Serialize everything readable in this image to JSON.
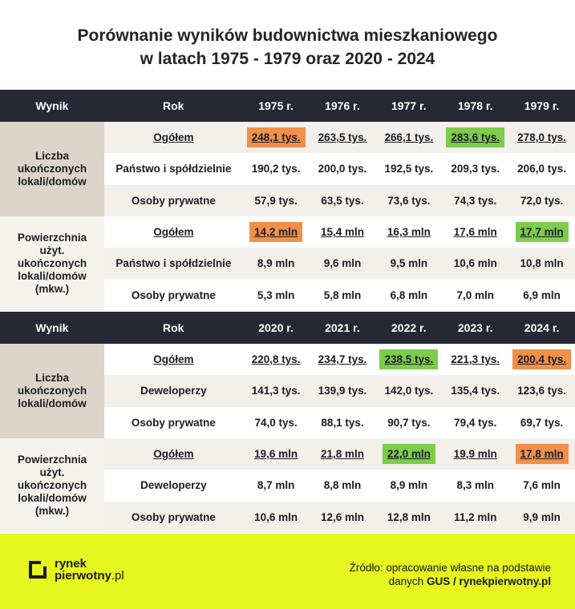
{
  "title": {
    "line1": "Porównanie wyników budownictwa mieszkaniowego",
    "line2": "w latach 1975 - 1979 oraz 2020 - 2024"
  },
  "table1": {
    "header": {
      "label": "Wynik",
      "category": "Rok",
      "years": [
        "1975 r.",
        "1976 r.",
        "1977 r.",
        "1978 r.",
        "1979 r."
      ]
    },
    "groups": [
      {
        "label": "Liczba ukończonych lokali/domów",
        "rows": [
          {
            "category": "Ogółem",
            "values": [
              "248,1 tys.",
              "263,5 tys.",
              "266,1 tys.",
              "283,6 tys.",
              "278,0 tys."
            ]
          },
          {
            "category": "Państwo i spółdzielnie",
            "values": [
              "190,2 tys.",
              "200,0 tys.",
              "192,5 tys.",
              "209,3 tys.",
              "206,0 tys."
            ]
          },
          {
            "category": "Osoby prywatne",
            "values": [
              "57,9 tys.",
              "63,5 tys.",
              "73,6 tys.",
              "74,3 tys.",
              "72,0 tys."
            ]
          }
        ]
      },
      {
        "label": "Powierzchnia użyt. ukończonych lokali/domów (mkw.)",
        "rows": [
          {
            "category": "Ogółem",
            "values": [
              "14,2 mln",
              "15,4 mln",
              "16,3 mln",
              "17,6 mln",
              "17,7 mln"
            ]
          },
          {
            "category": "Państwo i spółdzielnie",
            "values": [
              "8,9 mln",
              "9,6 mln",
              "9,5 mln",
              "10,6 mln",
              "10,8 mln"
            ]
          },
          {
            "category": "Osoby prywatne",
            "values": [
              "5,3 mln",
              "5,8 mln",
              "6,8 mln",
              "7,0 mln",
              "6,9 mln"
            ]
          }
        ]
      }
    ]
  },
  "table2": {
    "header": {
      "label": "Wynik",
      "category": "Rok",
      "years": [
        "2020 r.",
        "2021 r.",
        "2022 r.",
        "2023 r.",
        "2024 r."
      ]
    },
    "groups": [
      {
        "label": "Liczba ukończonych lokali/domów",
        "rows": [
          {
            "category": "Ogółem",
            "values": [
              "220,8 tys.",
              "234,7 tys.",
              "238,5 tys.",
              "221,3 tys.",
              "200,4 tys."
            ]
          },
          {
            "category": "Deweloperzy",
            "values": [
              "141,3 tys.",
              "139,9 tys.",
              "142,0 tys.",
              "135,4 tys.",
              "123,6 tys."
            ]
          },
          {
            "category": "Osoby prywatne",
            "values": [
              "74,0 tys.",
              "88,1 tys.",
              "90,7 tys.",
              "79,4 tys.",
              "69,7 tys."
            ]
          }
        ]
      },
      {
        "label": "Powierzchnia użyt. ukończonych lokali/domów (mkw.)",
        "rows": [
          {
            "category": "Ogółem",
            "values": [
              "19,6 mln",
              "21,8 mln",
              "22,0 mln",
              "19,9 mln",
              "17,8 mln"
            ]
          },
          {
            "category": "Deweloperzy",
            "values": [
              "8,7 mln",
              "8,8 mln",
              "8,9 mln",
              "8,3 mln",
              "7,6 mln"
            ]
          },
          {
            "category": "Osoby prywatne",
            "values": [
              "10,6 mln",
              "12,6 mln",
              "12,8 mln",
              "11,2 mln",
              "9,9 mln"
            ]
          }
        ]
      }
    ]
  },
  "highlight_colors": {
    "lowest": "#f0904a",
    "highest": "#7dcc4c"
  },
  "footer": {
    "logo_line1": "rynek",
    "logo_line2": "pierwotny",
    "logo_suffix": ".pl",
    "source_line1": "Źródło: opracowanie własne na podstawie",
    "source_line2_prefix": "danych ",
    "source_line2_bold": "GUS / rynekpierwotny.pl",
    "background": "#e6f61e"
  }
}
